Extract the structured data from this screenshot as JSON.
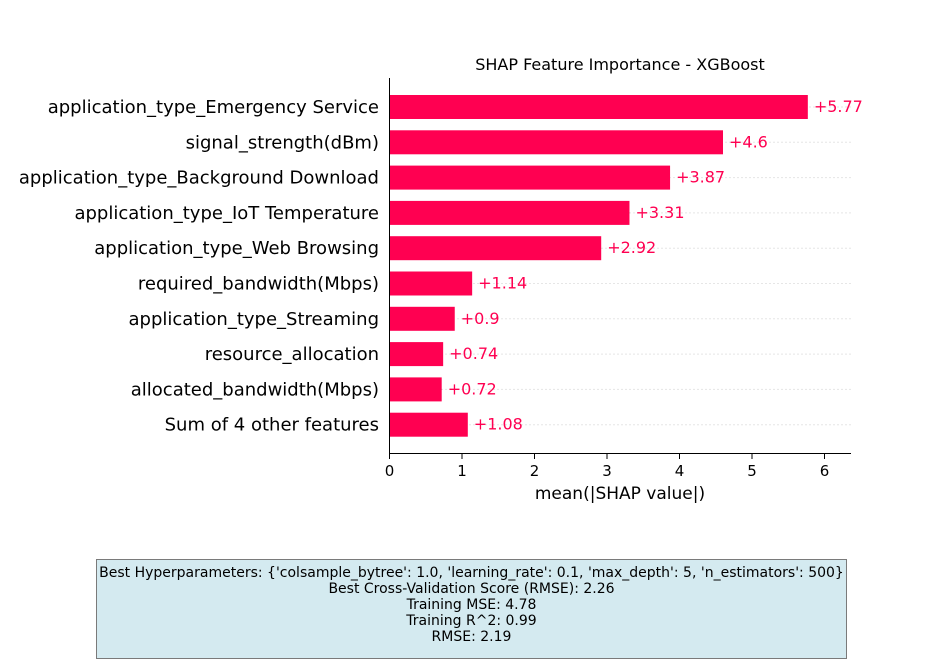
{
  "chart_data": {
    "type": "bar",
    "orientation": "horizontal",
    "title": "SHAP Feature Importance - XGBoost",
    "xlabel": "mean(|SHAP value|)",
    "xlim": [
      0,
      6.35
    ],
    "xticks": [
      0,
      1,
      2,
      3,
      4,
      5,
      6
    ],
    "categories": [
      "application_type_Emergency Service",
      "signal_strength(dBm)",
      "application_type_Background Download",
      "application_type_IoT Temperature",
      "application_type_Web Browsing",
      "required_bandwidth(Mbps)",
      "application_type_Streaming",
      "resource_allocation",
      "allocated_bandwidth(Mbps)",
      "Sum of 4 other features"
    ],
    "values": [
      5.77,
      4.6,
      3.87,
      3.31,
      2.92,
      1.14,
      0.9,
      0.74,
      0.72,
      1.08
    ],
    "value_labels": [
      "+5.77",
      "+4.6",
      "+3.87",
      "+3.31",
      "+2.92",
      "+1.14",
      "+0.9",
      "+0.74",
      "+0.72",
      "+1.08"
    ],
    "bar_color": "#ff0051",
    "grid": "dotted horizontal"
  },
  "info_box": {
    "lines": [
      "Best Hyperparameters: {'colsample_bytree': 1.0, 'learning_rate': 0.1, 'max_depth': 5, 'n_estimators': 500}",
      "Best Cross-Validation Score (RMSE): 2.26",
      "Training MSE: 4.78",
      "Training R^2: 0.99",
      "RMSE: 2.19"
    ],
    "background": "#d4eaf0"
  }
}
